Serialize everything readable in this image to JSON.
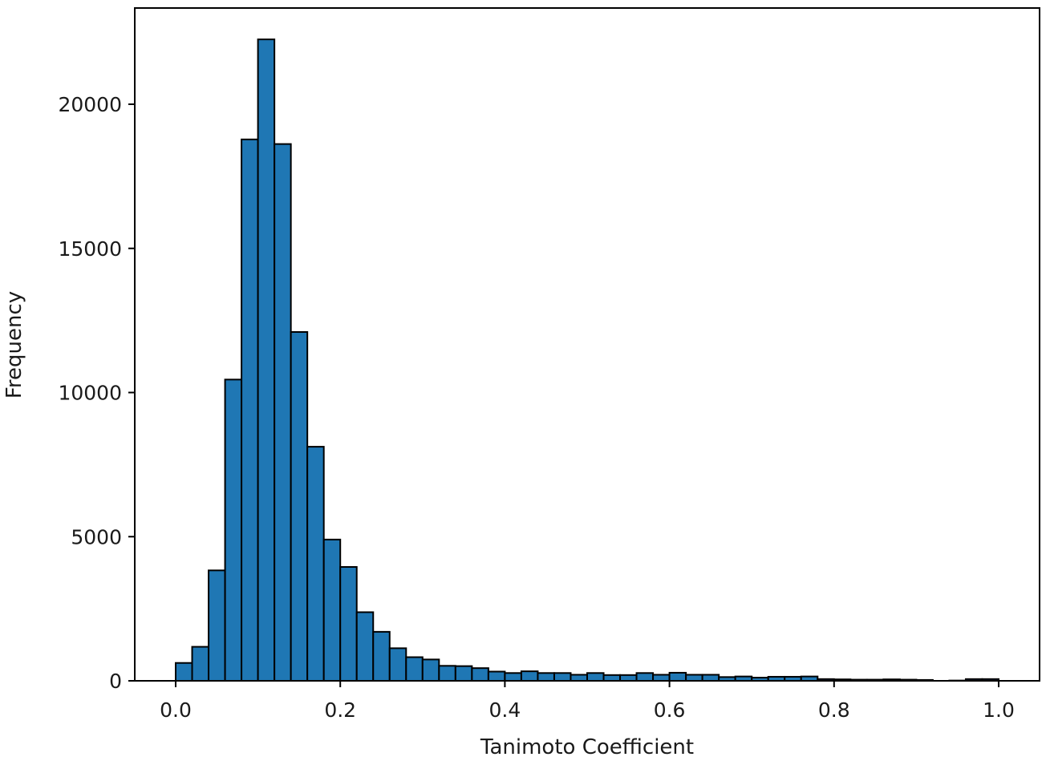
{
  "chart_data": {
    "type": "bar",
    "title": "",
    "xlabel": "Tanimoto Coefficient",
    "ylabel": "Frequency",
    "xlim": [
      -0.05,
      1.05
    ],
    "ylim": [
      0,
      23500
    ],
    "grid": false,
    "xticks": [
      0.0,
      0.2,
      0.4,
      0.6,
      0.8,
      1.0
    ],
    "xtick_labels": [
      "0.0",
      "0.2",
      "0.4",
      "0.6",
      "0.8",
      "1.0"
    ],
    "yticks": [
      0,
      5000,
      10000,
      15000,
      20000
    ],
    "ytick_labels": [
      "0",
      "5000",
      "10000",
      "15000",
      "20000"
    ],
    "bin_width": 0.02,
    "bin_starts": [
      0.0,
      0.02,
      0.04,
      0.06,
      0.08,
      0.1,
      0.12,
      0.14,
      0.16,
      0.18,
      0.2,
      0.22,
      0.24,
      0.26,
      0.28,
      0.3,
      0.32,
      0.34,
      0.36,
      0.38,
      0.4,
      0.42,
      0.44,
      0.46,
      0.48,
      0.5,
      0.52,
      0.54,
      0.56,
      0.58,
      0.6,
      0.62,
      0.64,
      0.66,
      0.68,
      0.7,
      0.72,
      0.74,
      0.76,
      0.78,
      0.8,
      0.82,
      0.84,
      0.86,
      0.88,
      0.9,
      0.92,
      0.94,
      0.96,
      0.98
    ],
    "values": [
      620,
      1180,
      3830,
      10450,
      18780,
      22250,
      18620,
      12100,
      8120,
      4900,
      3950,
      2380,
      1700,
      1130,
      820,
      740,
      520,
      510,
      440,
      320,
      270,
      330,
      270,
      270,
      210,
      270,
      200,
      200,
      270,
      210,
      280,
      210,
      210,
      130,
      150,
      110,
      140,
      140,
      150,
      60,
      50,
      40,
      40,
      50,
      40,
      30,
      0,
      10,
      60,
      60
    ]
  }
}
